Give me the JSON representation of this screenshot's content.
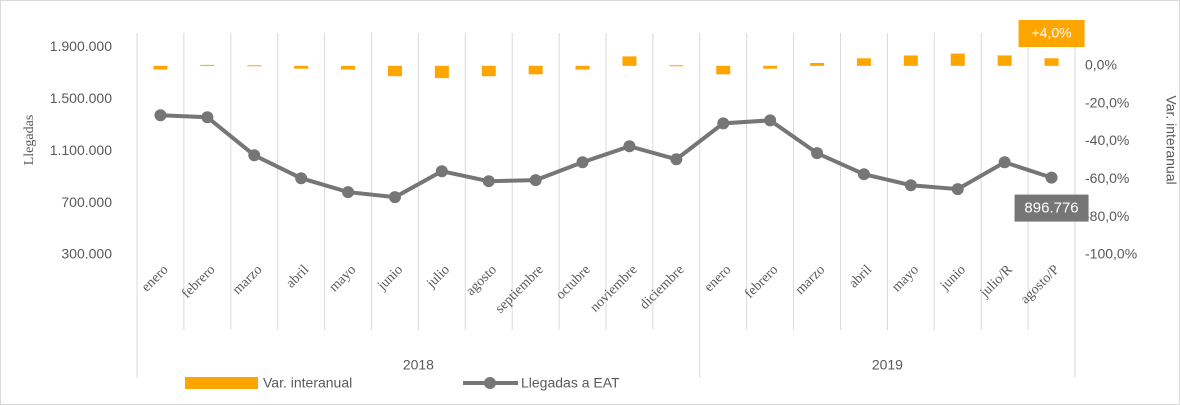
{
  "chart_data": {
    "type": "bar-line",
    "y_label": "Llegadas",
    "y2_label": "Var. interanual",
    "groups": [
      {
        "label": "2018",
        "categories": [
          "enero",
          "febrero",
          "marzo",
          "abril",
          "mayo",
          "junio",
          "julio",
          "agosto",
          "septiembre",
          "octubre",
          "noviembre",
          "diciembre"
        ]
      },
      {
        "label": "2019",
        "categories": [
          "enero",
          "febrero",
          "marzo",
          "abril",
          "mayo",
          "junio",
          "julio/R",
          "agosto/P"
        ]
      }
    ],
    "series": [
      {
        "name": "Var. interanual",
        "type": "bar",
        "axis": "y2",
        "color": "#ffa500",
        "values": [
          -2,
          0.5,
          0.3,
          -1.5,
          -2,
          -5.5,
          -6.5,
          -5.5,
          -4.5,
          -2,
          5,
          0.3,
          -4.5,
          -1.5,
          1.5,
          4,
          5.5,
          6.5,
          5.5,
          4.0
        ],
        "value_labels": [
          null,
          null,
          null,
          null,
          null,
          null,
          null,
          null,
          null,
          null,
          null,
          null,
          null,
          null,
          null,
          null,
          null,
          null,
          null,
          "+4,0%"
        ]
      },
      {
        "name": "Llegadas a EAT",
        "type": "line",
        "axis": "y",
        "color": "#767676",
        "values": [
          1377000,
          1362000,
          1069000,
          892000,
          785000,
          746000,
          946000,
          869000,
          877000,
          1015000,
          1138000,
          1038000,
          1315000,
          1338000,
          1085000,
          923000,
          838000,
          808000,
          1015000,
          896776
        ],
        "value_labels": [
          null,
          null,
          null,
          null,
          null,
          null,
          null,
          null,
          null,
          null,
          null,
          null,
          null,
          null,
          null,
          null,
          null,
          null,
          null,
          "896.776"
        ]
      }
    ],
    "ylim": [
      300000,
      2050000
    ],
    "yticks": [
      {
        "value": 300000,
        "label": "300.000"
      },
      {
        "value": 700000,
        "label": "700.000"
      },
      {
        "value": 1100000,
        "label": "1.100.000"
      },
      {
        "value": 1500000,
        "label": "1.500.000"
      },
      {
        "value": 1900000,
        "label": "1.900.000"
      }
    ],
    "y2lim": [
      -100,
      20
    ],
    "y2ticks": [
      {
        "value": -100,
        "label": "-100,0%"
      },
      {
        "value": -80,
        "label": "-80,0%"
      },
      {
        "value": -60,
        "label": "-60,0%"
      },
      {
        "value": -40,
        "label": "-40,0%"
      },
      {
        "value": -20,
        "label": "-20,0%"
      },
      {
        "value": 0,
        "label": "0,0%"
      }
    ],
    "legend": "bottom"
  }
}
